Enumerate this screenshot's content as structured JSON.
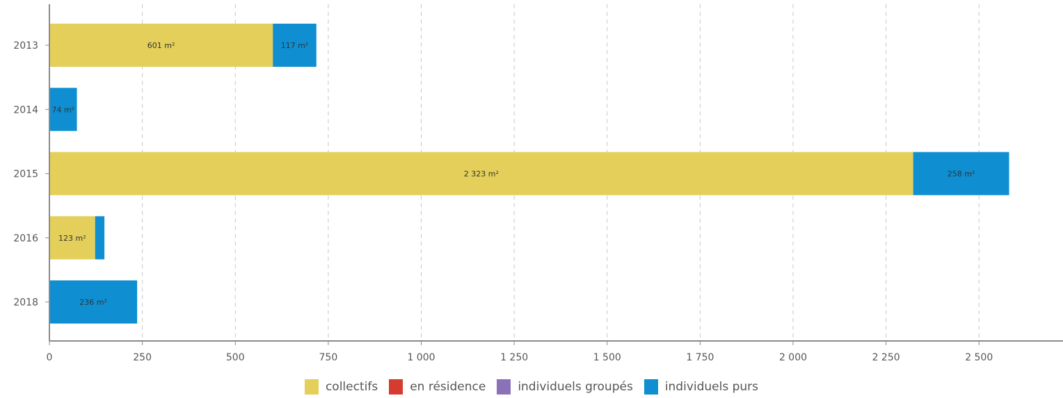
{
  "chart_data": {
    "type": "bar",
    "orientation": "horizontal",
    "stacked": true,
    "categories": [
      "2013",
      "2014",
      "2015",
      "2016",
      "2018"
    ],
    "series": [
      {
        "name": "collectifs",
        "color": "#e3cf5a",
        "values": [
          601,
          0,
          2323,
          123,
          0
        ],
        "labels": [
          "601 m²",
          "",
          "2 323 m²",
          "123 m²",
          ""
        ]
      },
      {
        "name": "en résidence",
        "color": "#d63b2f",
        "values": [
          0,
          0,
          0,
          0,
          0
        ],
        "labels": [
          "",
          "",
          "",
          "",
          ""
        ]
      },
      {
        "name": "individuels groupés",
        "color": "#8b72b8",
        "values": [
          0,
          0,
          0,
          0,
          0
        ],
        "labels": [
          "",
          "",
          "",
          "",
          ""
        ]
      },
      {
        "name": "individuels purs",
        "color": "#0f8ed1",
        "values": [
          117,
          74,
          258,
          25,
          236
        ],
        "labels": [
          "117 m²",
          "74 m²",
          "258 m²",
          "",
          "236 m²"
        ]
      }
    ],
    "xticks": [
      0,
      250,
      500,
      750,
      1000,
      1250,
      1500,
      1750,
      2000,
      2250,
      2500
    ],
    "xtick_labels": [
      "0",
      "250",
      "500",
      "750",
      "1 000",
      "1 250",
      "1 500",
      "1 750",
      "2 000",
      "2 250",
      "2 500"
    ],
    "xlim": [
      0,
      2725
    ],
    "grid": "vertical-dashed",
    "legend_position": "bottom"
  }
}
